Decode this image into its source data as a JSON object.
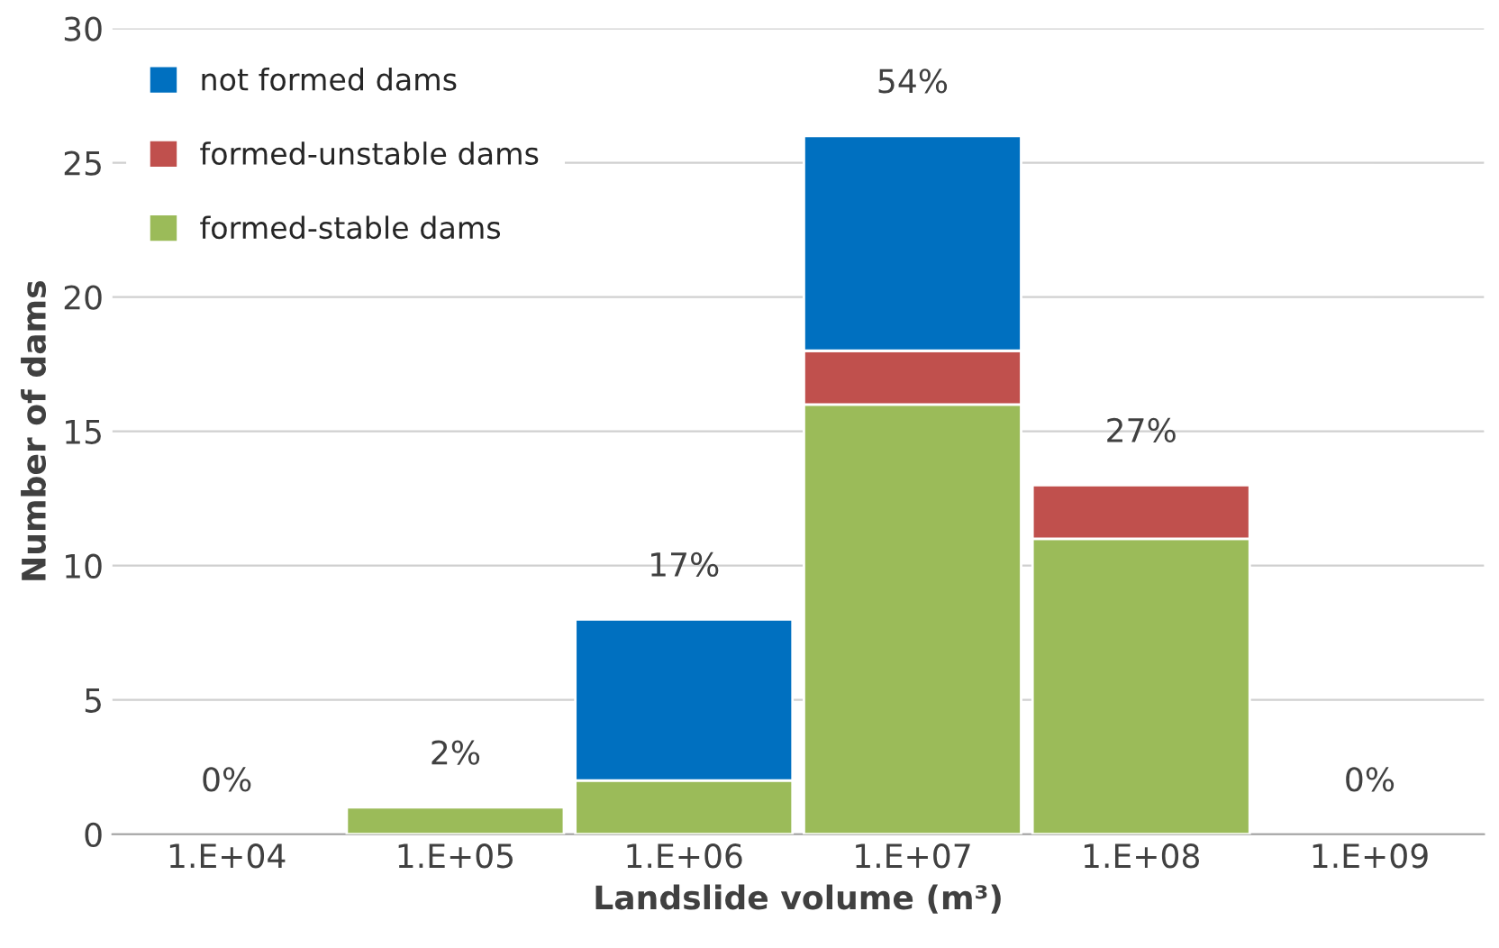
{
  "chart_data": {
    "type": "bar",
    "stacked": true,
    "xlabel": "Landslide volume (m³)",
    "ylabel": "Number of dams",
    "categories": [
      "1.E+04",
      "1.E+05",
      "1.E+06",
      "1.E+07",
      "1.E+08",
      "1.E+09"
    ],
    "series": [
      {
        "name": "formed-stable dams",
        "color": "#9bbb59",
        "values": [
          0,
          1,
          2,
          16,
          11,
          0
        ]
      },
      {
        "name": "formed-unstable dams",
        "color": "#c0504d",
        "values": [
          0,
          0,
          0,
          2,
          2,
          0
        ]
      },
      {
        "name": "not formed dams",
        "color": "#0070c0",
        "values": [
          0,
          0,
          6,
          8,
          0,
          0
        ]
      }
    ],
    "annotations": [
      {
        "text": "0%",
        "x": "1.E+04",
        "y": 0
      },
      {
        "text": "2%",
        "x": "1.E+05",
        "y": 1
      },
      {
        "text": "17%",
        "x": "1.E+06",
        "y": 8
      },
      {
        "text": "54%",
        "x": "1.E+07",
        "y": 26
      },
      {
        "text": "27%",
        "x": "1.E+08",
        "y": 13
      },
      {
        "text": "0%",
        "x": "1.E+09",
        "y": 0
      }
    ],
    "ylim": [
      0,
      30
    ],
    "yticks": [
      0,
      5,
      10,
      15,
      20,
      25,
      30
    ],
    "grid": "y",
    "legend": "top left"
  }
}
